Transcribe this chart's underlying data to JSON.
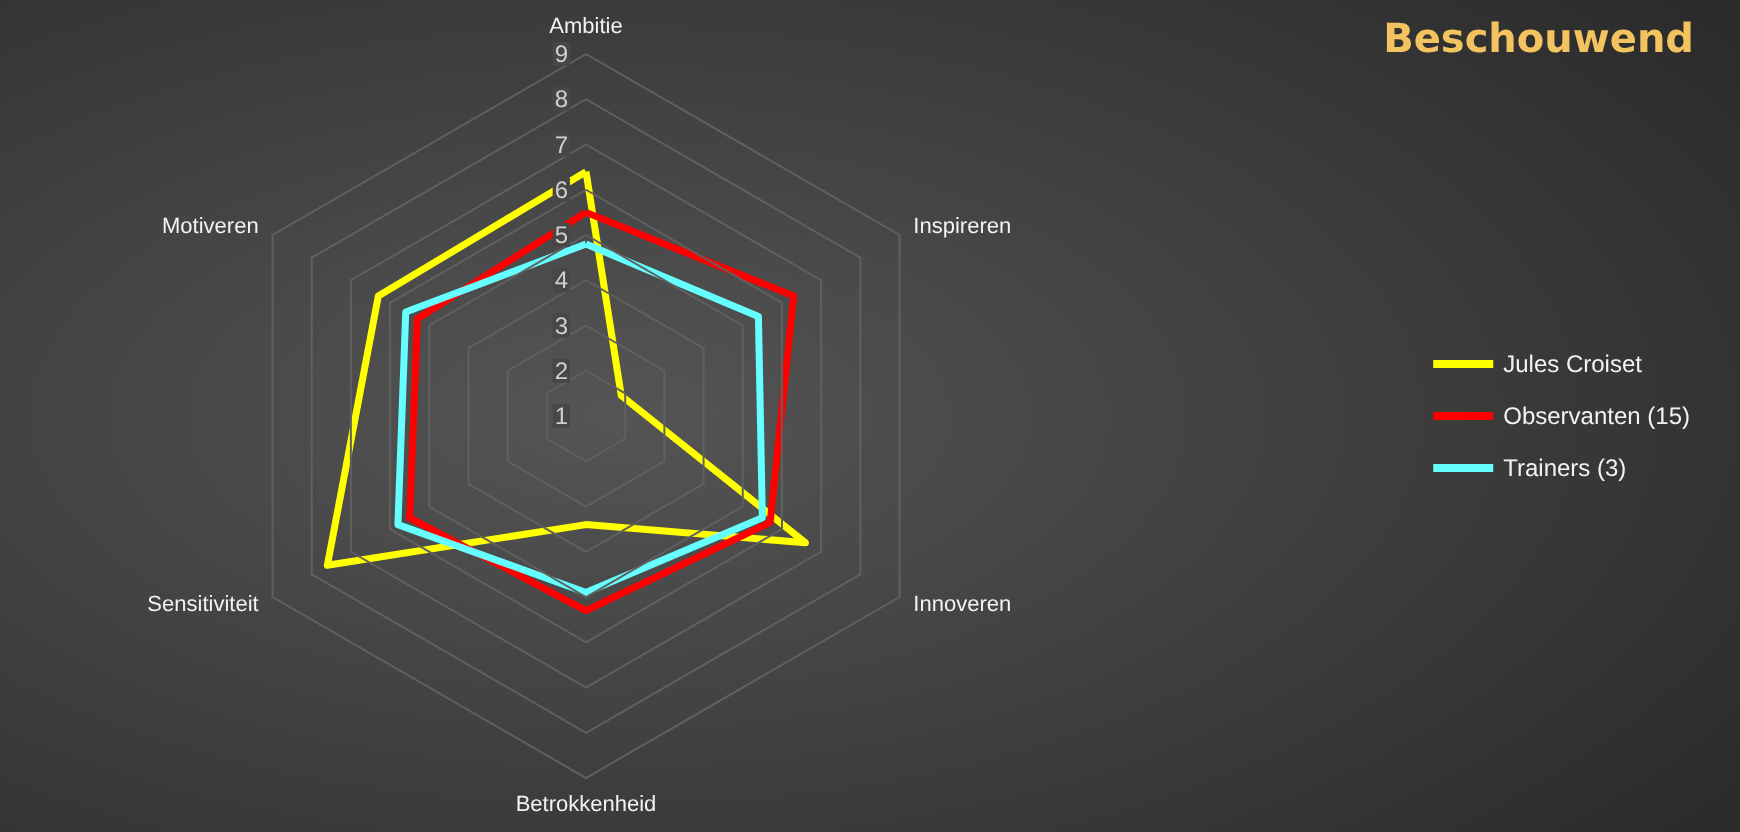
{
  "chart_data": {
    "type": "radar",
    "title": "Beschouwend",
    "categories": [
      "Ambitie",
      "Inspireren",
      "Innoveren",
      "Betrokkenheid",
      "Sensitiviteit",
      "Motiveren"
    ],
    "series": [
      {
        "name": "Jules Croiset",
        "color": "#ffff00",
        "values": [
          6.4,
          1.9,
          6.6,
          3.4,
          7.6,
          6.3
        ]
      },
      {
        "name": "Observanten (15)",
        "color": "#ff0000",
        "values": [
          5.5,
          6.3,
          5.7,
          5.3,
          5.5,
          5.3
        ]
      },
      {
        "name": "Trainers (3)",
        "color": "#66ffff",
        "values": [
          4.8,
          5.4,
          5.5,
          4.9,
          5.8,
          5.6
        ]
      }
    ],
    "ylim": [
      1,
      9
    ],
    "yticks": [
      1,
      2,
      3,
      4,
      5,
      6,
      7,
      8,
      9
    ],
    "grid": true,
    "legend": "right",
    "marker": "none",
    "line_style": "solid"
  }
}
